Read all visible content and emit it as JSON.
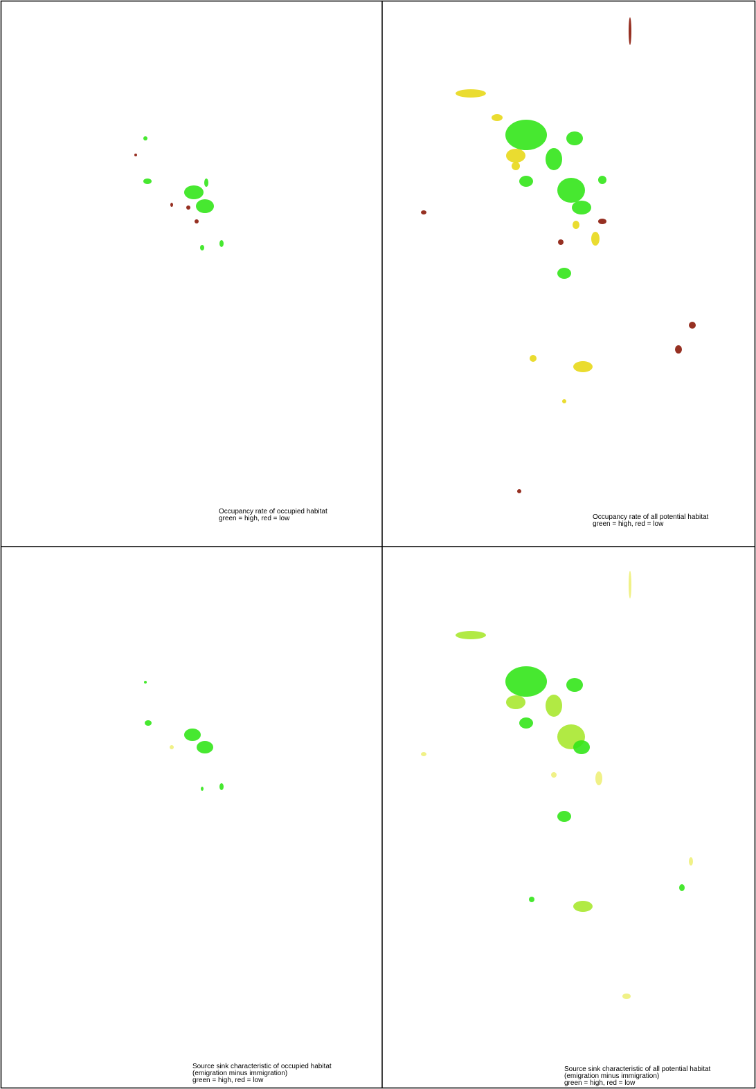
{
  "panels": [
    {
      "caption": [
        "Occupancy rate of occupied habitat",
        "green = high, red = low"
      ]
    },
    {
      "caption": [
        "Occupancy rate of all potential habitat",
        "green = high, red = low"
      ]
    },
    {
      "caption": [
        "Source sink characteristic of occupied habitat",
        "(emigration minus immigration)",
        "green = high,  red = low"
      ]
    },
    {
      "caption": [
        "Source sink characteristic of all potential habitat",
        "(emigration minus immigration)",
        "green = high,  red = low"
      ]
    }
  ]
}
